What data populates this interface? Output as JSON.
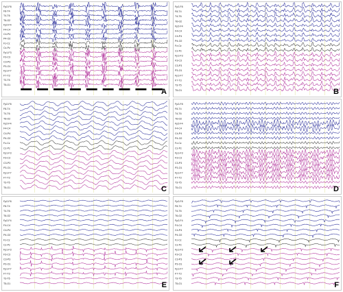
{
  "figure": {
    "panels": [
      {
        "letter": "A",
        "montage": [
          "Fp2-F8",
          "F8-T4",
          "T4-T6",
          "T6-O2",
          "Fp2-F4",
          "F4-C4",
          "C4-P4",
          "P4-O2",
          "Fz-Cz",
          "Cz-Pz",
          "Fp1-F3",
          "F3-C3",
          "C3-P3",
          "P3-O1",
          "Fp1-F7",
          "F7-T3",
          "T3-T5",
          "T5-O1"
        ]
      },
      {
        "letter": "B",
        "montage": [
          "Fp2-F8",
          "F8-T4",
          "T4-T6",
          "T6-O2",
          "Fp2-F4",
          "F4-C4",
          "C4-P4",
          "P4-O2",
          "Fz-Cz",
          "Cz-Pz",
          "Fp1-F3",
          "F3-C3",
          "C3-P3",
          "P3-O1",
          "Fp1-F7",
          "F7-T3",
          "T3-T5",
          "T5-O1"
        ]
      },
      {
        "letter": "C",
        "montage": [
          "Fp2-F8",
          "F8-T4",
          "T4-T6",
          "T6-O2",
          "Fp2-F4",
          "F4-C4",
          "C4-P4",
          "P4-O2",
          "Fz-Cz",
          "Cz-Pz",
          "Fp1-F3",
          "F3-C3",
          "C3-P3",
          "P3-O1",
          "Fp1-F7",
          "F7-T3",
          "T3-T5",
          "T5-O1"
        ]
      },
      {
        "letter": "D",
        "montage": [
          "Fp2-F8",
          "F8-T4",
          "T4-T6",
          "T6-O2",
          "Fp2-F4",
          "F4-C4",
          "C4-P4",
          "P4-O2",
          "Fz-Cz",
          "Cz-Pz",
          "Fp1-F3",
          "F3-C3",
          "C3-P3",
          "P3-O1",
          "Fp1-F7",
          "F7-T3",
          "T3-T5",
          "T5-O1"
        ]
      },
      {
        "letter": "E",
        "montage": [
          "Fp2-F8",
          "F8-T4",
          "T4-T6",
          "T6-O2",
          "Fp2-F4",
          "F4-C4",
          "C4-P4",
          "P4-O2",
          "Fz-Cz",
          "Cz-Pz",
          "Fp1-F3",
          "F3-C3",
          "C3-P3",
          "P3-O1",
          "Fp1-F7",
          "F7-T3",
          "T3-T5",
          "T5-O1"
        ]
      },
      {
        "letter": "F",
        "montage": [
          "Fp2-F8",
          "F8-T4",
          "T4-T6",
          "T6-O2",
          "Fp2-F4",
          "F4-C4",
          "C4-P4",
          "P4-O2",
          "Fz-Cz",
          "Cz-Pz",
          "Fp1-F3",
          "F3-C3",
          "C3-P3",
          "P3-O1",
          "Fp1-F7",
          "F7-T3",
          "T3-T5",
          "T5-O1"
        ]
      }
    ],
    "colors": {
      "right_hemisphere": "#2b2f9a",
      "midline": "#3a3a3a",
      "left_hemisphere": "#b0309a",
      "grid": "#e6e6a8",
      "stimulus_marker": "#000000",
      "arrow": "#000000"
    }
  }
}
